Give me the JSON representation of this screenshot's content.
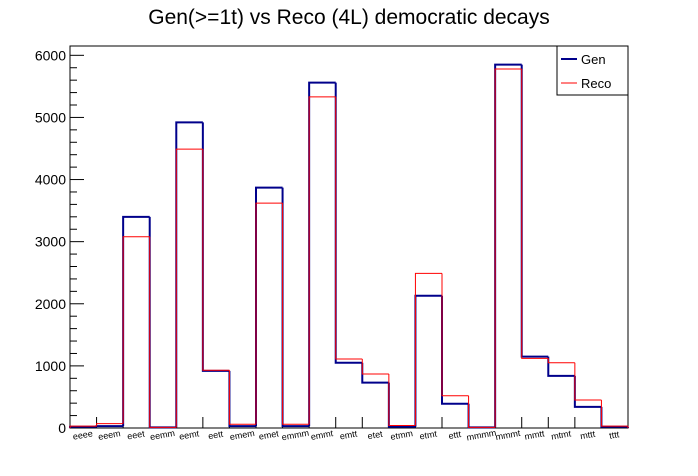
{
  "chart_data": {
    "type": "bar",
    "title": "Gen(>=1t) vs Reco (4L) democratic decays",
    "xlabel": "",
    "ylabel": "",
    "ylim": [
      0,
      6150
    ],
    "yticks": [
      0,
      1000,
      2000,
      3000,
      4000,
      5000,
      6000
    ],
    "grid": false,
    "legend_position": "top-right",
    "categories": [
      "eeee",
      "eeem",
      "eeet",
      "eemm",
      "eemt",
      "eett",
      "emem",
      "emet",
      "emmm",
      "emmt",
      "emtt",
      "etet",
      "etmm",
      "etmt",
      "ettt",
      "mmmm",
      "mmmt",
      "mmtt",
      "mtmt",
      "mttt",
      "tttt"
    ],
    "series": [
      {
        "name": "Gen",
        "color": "#00008b",
        "values": [
          20,
          30,
          3400,
          10,
          4920,
          920,
          30,
          3870,
          30,
          5560,
          1050,
          730,
          20,
          2130,
          390,
          10,
          5850,
          1150,
          840,
          340,
          20
        ]
      },
      {
        "name": "Reco",
        "color": "#ff0000",
        "values": [
          30,
          70,
          3080,
          10,
          4490,
          930,
          60,
          3620,
          60,
          5330,
          1110,
          870,
          40,
          2490,
          520,
          10,
          5780,
          1120,
          1050,
          450,
          30
        ]
      }
    ]
  }
}
